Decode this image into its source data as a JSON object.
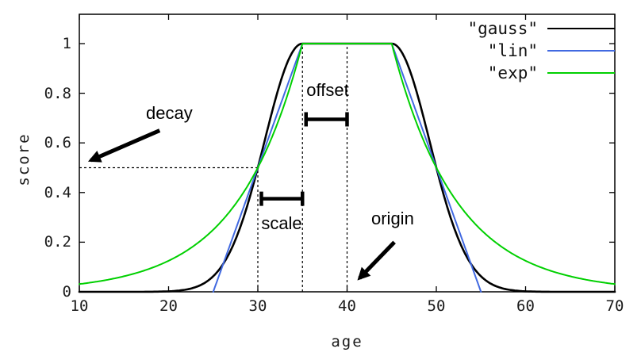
{
  "chart_data": {
    "type": "line",
    "title": "",
    "xlabel": "age",
    "ylabel": "score",
    "xlim": [
      10,
      70
    ],
    "ylim": [
      0,
      1.12
    ],
    "grid": false,
    "legend_position": "top-right-inside",
    "x_ticks": [
      10,
      20,
      30,
      40,
      50,
      60,
      70
    ],
    "x_tick_labels": [
      "10",
      "20",
      "30",
      "40",
      "50",
      "60",
      "70"
    ],
    "y_ticks": [
      0,
      0.2,
      0.4,
      0.6,
      0.8,
      1
    ],
    "y_tick_labels": [
      "0",
      "0.2",
      "0.4",
      "0.6",
      "0.8",
      "1"
    ],
    "series": [
      {
        "name": "\"gauss\"",
        "color": "#000000",
        "function": "gauss",
        "width": 2.6
      },
      {
        "name": "\"lin\"",
        "color": "#4169e1",
        "function": "lin",
        "width": 2
      },
      {
        "name": "\"exp\"",
        "color": "#00d000",
        "function": "exp",
        "width": 2
      }
    ],
    "decay_params": {
      "origin": 40,
      "offset": 5,
      "scale": 5,
      "decay": 0.5
    },
    "sampled_points": {
      "x": [
        10,
        15,
        20,
        25,
        30,
        35,
        40,
        45,
        50,
        55,
        60,
        65,
        70
      ],
      "gauss": [
        0,
        0,
        0.002,
        0.0625,
        0.5,
        1,
        1,
        1,
        0.5,
        0.0625,
        0.002,
        0,
        0
      ],
      "lin": [
        0,
        0,
        0,
        0,
        0.5,
        1,
        1,
        1,
        0.5,
        0,
        0,
        0,
        0
      ],
      "exp": [
        0.031,
        0.0625,
        0.125,
        0.25,
        0.5,
        1,
        1,
        1,
        0.5,
        0.25,
        0.125,
        0.0625,
        0.031
      ]
    },
    "guides": {
      "vlines": [
        {
          "x": 30,
          "y_top": 0.5
        },
        {
          "x": 35,
          "y_top": 1
        },
        {
          "x": 40,
          "y_top": 1
        }
      ],
      "hline": {
        "y": 0.5,
        "x_from": 10,
        "x_to": 30
      }
    },
    "annotations": {
      "decay": {
        "label": "decay",
        "arrow_from": [
          19,
          0.65
        ],
        "arrow_to": [
          11.3,
          0.53
        ]
      },
      "origin": {
        "label": "origin",
        "arrow_from": [
          45.3,
          0.2
        ],
        "arrow_to": [
          41.4,
          0.055
        ]
      },
      "offset": {
        "label": "offset",
        "bracket": {
          "from_x": 35.4,
          "to_x": 40,
          "y": 0.695
        }
      },
      "scale": {
        "label": "scale",
        "bracket": {
          "from_x": 30.4,
          "to_x": 35,
          "y": 0.375
        }
      }
    }
  }
}
